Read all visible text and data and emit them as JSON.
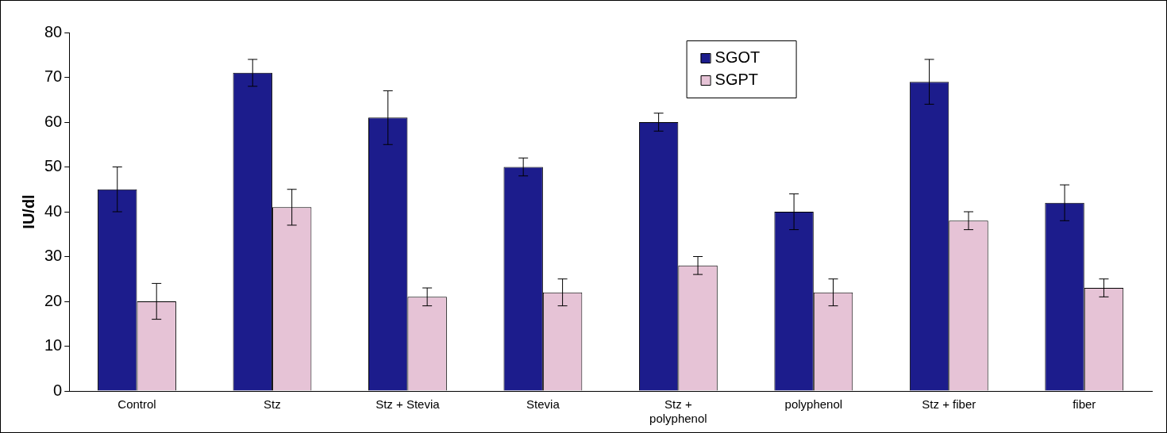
{
  "chart_data": {
    "type": "bar",
    "ylabel": "IU/dl",
    "categories": [
      "Control",
      "Stz",
      "Stz + Stevia",
      "Stevia",
      "Stz + polyphenol",
      "polyphenol",
      "Stz + fiber",
      "fiber"
    ],
    "series": [
      {
        "name": "SGOT",
        "color": "#1c1c8c",
        "values": [
          45,
          71,
          61,
          50,
          60,
          40,
          69,
          42
        ],
        "errors": [
          5,
          3,
          6,
          2,
          2,
          4,
          5,
          4
        ]
      },
      {
        "name": "SGPT",
        "color": "#e6c3d6",
        "values": [
          20,
          41,
          21,
          22,
          28,
          22,
          38,
          23
        ],
        "errors": [
          4,
          4,
          2,
          3,
          2,
          3,
          2,
          2
        ]
      }
    ],
    "ylim": [
      0,
      80
    ],
    "yticks": [
      0,
      10,
      20,
      30,
      40,
      50,
      60,
      70,
      80
    ],
    "grid": false,
    "legend": "top right"
  }
}
